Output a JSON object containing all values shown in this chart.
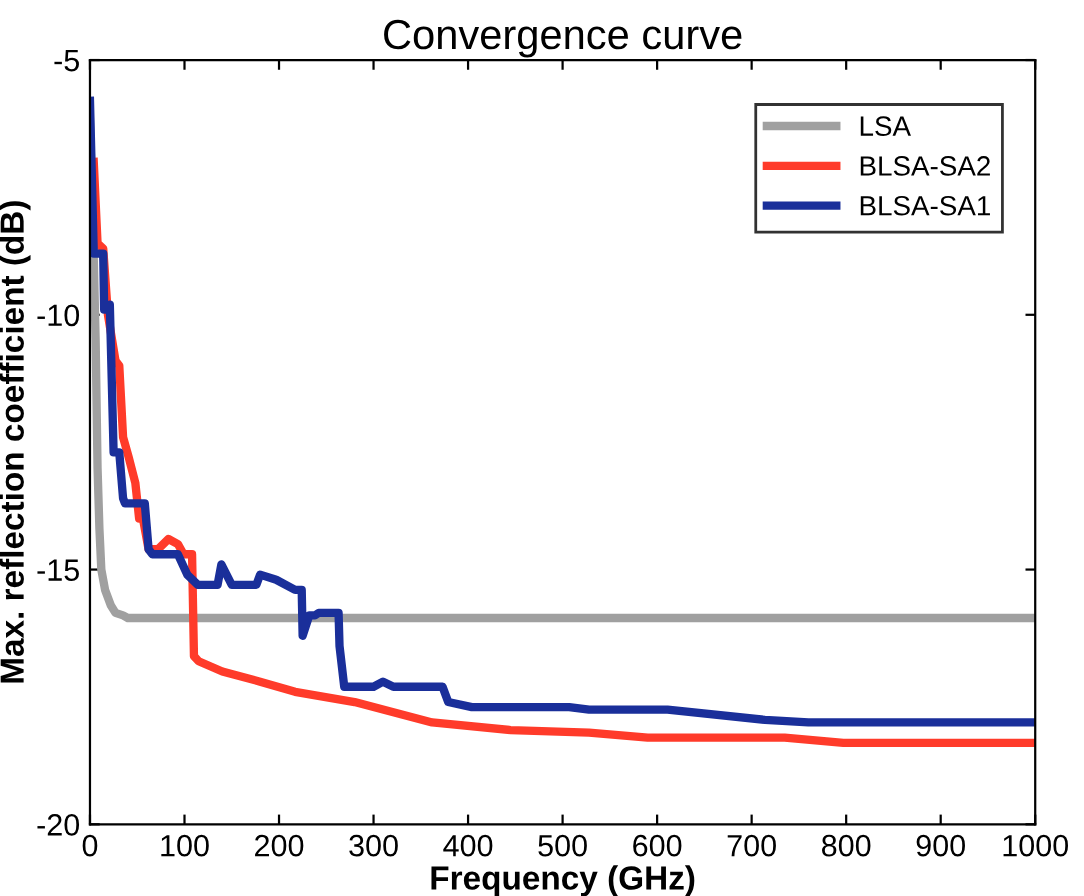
{
  "chart_data": {
    "type": "line",
    "title": "Convergence curve",
    "xlabel": "Frequency (GHz)",
    "ylabel": "Max. reflection coefficient (dB)",
    "xlim": [
      0,
      1000
    ],
    "ylim": [
      -20,
      -5
    ],
    "xticks": [
      0,
      100,
      200,
      300,
      400,
      500,
      600,
      700,
      800,
      900,
      1000
    ],
    "yticks": [
      -20,
      -15,
      -10,
      -5
    ],
    "grid": false,
    "legend": "top right",
    "line_style": "solid",
    "marker": "none",
    "series": [
      {
        "name": "LSA",
        "color": "#a0a0a0",
        "x": [
          0,
          4,
          6,
          8,
          10,
          12,
          16,
          22,
          27,
          35,
          40,
          1000
        ],
        "values": [
          -6.2,
          -8.9,
          -10.5,
          -13.0,
          -14.2,
          -15.0,
          -15.4,
          -15.7,
          -15.85,
          -15.9,
          -15.95,
          -15.95
        ]
      },
      {
        "name": "BLSA-SA2",
        "color": "#ff3b2a",
        "x": [
          4,
          8,
          14,
          19,
          27,
          31,
          35,
          41,
          48,
          52,
          56,
          62,
          72,
          83,
          93,
          99,
          108,
          110,
          115,
          140,
          180,
          217,
          280,
          362,
          445,
          528,
          590,
          735,
          797,
          1000
        ],
        "values": [
          -7.0,
          -8.6,
          -8.7,
          -10.0,
          -10.9,
          -11.0,
          -12.4,
          -12.8,
          -13.3,
          -14.0,
          -14.0,
          -14.6,
          -14.6,
          -14.4,
          -14.5,
          -14.7,
          -14.7,
          -16.7,
          -16.8,
          -17.0,
          -17.2,
          -17.4,
          -17.6,
          -18.0,
          -18.15,
          -18.2,
          -18.3,
          -18.3,
          -18.4,
          -18.4
        ]
      },
      {
        "name": "BLSA-SA1",
        "color": "#1a2f9a",
        "x": [
          0,
          4,
          14,
          15,
          20,
          21,
          25,
          31,
          35,
          37,
          58,
          62,
          66,
          93,
          103,
          114,
          135,
          139,
          150,
          176,
          180,
          197,
          217,
          224,
          225,
          232,
          238,
          242,
          263,
          264,
          269,
          300,
          310,
          321,
          373,
          379,
          404,
          507,
          528,
          611,
          714,
          760,
          1000
        ],
        "values": [
          -5.8,
          -8.8,
          -8.8,
          -9.9,
          -9.9,
          -9.8,
          -12.7,
          -12.7,
          -13.6,
          -13.7,
          -13.7,
          -14.6,
          -14.7,
          -14.7,
          -15.1,
          -15.3,
          -15.3,
          -14.9,
          -15.3,
          -15.3,
          -15.1,
          -15.2,
          -15.4,
          -15.4,
          -16.3,
          -15.9,
          -15.9,
          -15.85,
          -15.85,
          -16.5,
          -17.3,
          -17.3,
          -17.2,
          -17.3,
          -17.3,
          -17.6,
          -17.7,
          -17.7,
          -17.75,
          -17.75,
          -17.95,
          -18.0,
          -18.0
        ]
      }
    ]
  }
}
